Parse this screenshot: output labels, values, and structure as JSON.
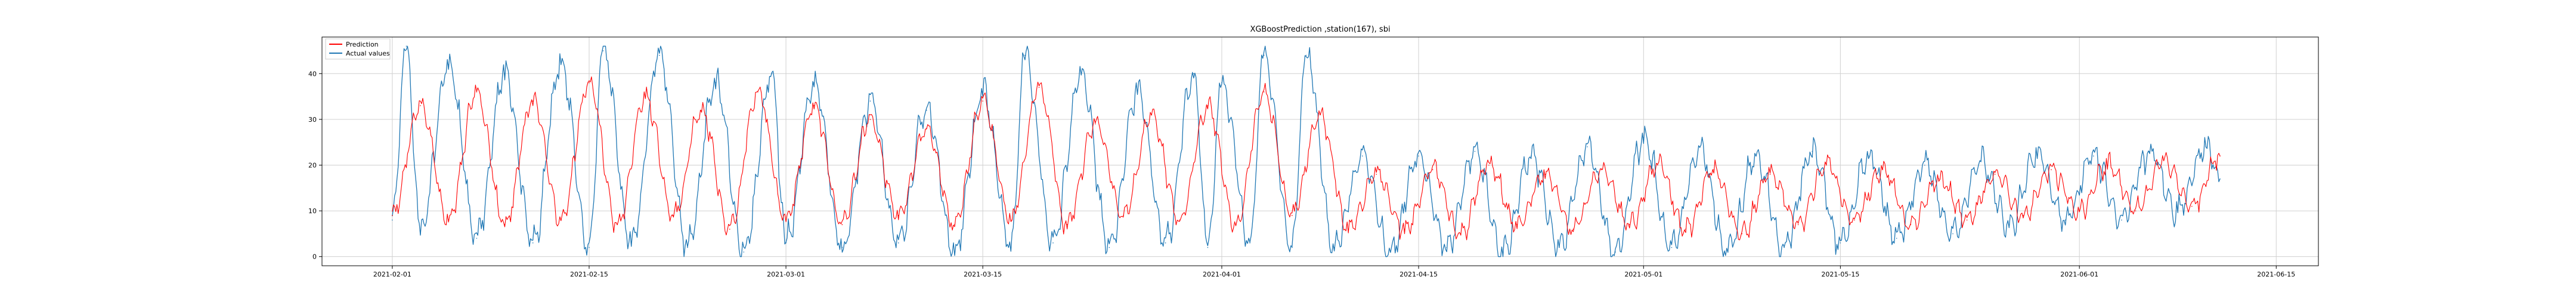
{
  "chart_data": {
    "type": "line",
    "title": "XGBoostPrediction ,station(167), sbi",
    "xlabel": "",
    "ylabel": "",
    "xlim": [
      "2021-01-27",
      "2021-06-18"
    ],
    "ylim": [
      -2,
      48
    ],
    "x_ticks": [
      "2021-02-01",
      "2021-02-15",
      "2021-03-01",
      "2021-03-15",
      "2021-04-01",
      "2021-04-15",
      "2021-05-01",
      "2021-05-15",
      "2021-06-01",
      "2021-06-15"
    ],
    "y_ticks": [
      "0",
      "10",
      "20",
      "30",
      "40"
    ],
    "grid": true,
    "legend_position": "top-left",
    "data_start": "2021-02-01",
    "data_end": "2021-06-11",
    "series": [
      {
        "name": "Prediction",
        "color": "#ff0000",
        "points": [
          [
            "2021-02-01",
            9
          ],
          [
            "2021-02-03",
            33
          ],
          [
            "2021-02-05",
            8
          ],
          [
            "2021-02-07",
            36
          ],
          [
            "2021-02-09",
            7
          ],
          [
            "2021-02-11",
            34
          ],
          [
            "2021-02-13",
            8
          ],
          [
            "2021-02-15",
            38
          ],
          [
            "2021-02-17",
            7
          ],
          [
            "2021-02-19",
            35
          ],
          [
            "2021-02-21",
            9
          ],
          [
            "2021-02-23",
            32
          ],
          [
            "2021-02-25",
            6
          ],
          [
            "2021-02-27",
            36
          ],
          [
            "2021-03-01",
            8
          ],
          [
            "2021-03-03",
            33
          ],
          [
            "2021-03-05",
            7
          ],
          [
            "2021-03-07",
            30
          ],
          [
            "2021-03-09",
            9
          ],
          [
            "2021-03-11",
            28
          ],
          [
            "2021-03-13",
            7
          ],
          [
            "2021-03-15",
            34
          ],
          [
            "2021-03-17",
            8
          ],
          [
            "2021-03-19",
            37
          ],
          [
            "2021-03-21",
            7
          ],
          [
            "2021-03-23",
            29
          ],
          [
            "2021-03-25",
            9
          ],
          [
            "2021-03-27",
            31
          ],
          [
            "2021-03-29",
            8
          ],
          [
            "2021-03-31",
            33
          ],
          [
            "2021-04-02",
            7
          ],
          [
            "2021-04-04",
            36
          ],
          [
            "2021-04-06",
            9
          ],
          [
            "2021-04-08",
            31
          ],
          [
            "2021-04-10",
            6
          ],
          [
            "2021-04-12",
            18
          ],
          [
            "2021-04-14",
            6
          ],
          [
            "2021-04-16",
            19
          ],
          [
            "2021-04-18",
            5
          ],
          [
            "2021-04-20",
            20
          ],
          [
            "2021-04-22",
            7
          ],
          [
            "2021-04-24",
            18
          ],
          [
            "2021-04-26",
            6
          ],
          [
            "2021-04-28",
            19
          ],
          [
            "2021-04-30",
            7
          ],
          [
            "2021-05-02",
            20
          ],
          [
            "2021-05-04",
            6
          ],
          [
            "2021-05-06",
            19
          ],
          [
            "2021-05-08",
            5
          ],
          [
            "2021-05-10",
            18
          ],
          [
            "2021-05-12",
            7
          ],
          [
            "2021-05-14",
            20
          ],
          [
            "2021-05-16",
            8
          ],
          [
            "2021-05-18",
            19
          ],
          [
            "2021-05-20",
            7
          ],
          [
            "2021-05-22",
            17
          ],
          [
            "2021-05-24",
            8
          ],
          [
            "2021-05-26",
            18
          ],
          [
            "2021-05-28",
            9
          ],
          [
            "2021-05-30",
            19
          ],
          [
            "2021-06-01",
            10
          ],
          [
            "2021-06-03",
            20
          ],
          [
            "2021-06-05",
            10
          ],
          [
            "2021-06-07",
            21
          ],
          [
            "2021-06-09",
            11
          ],
          [
            "2021-06-11",
            22
          ]
        ]
      },
      {
        "name": "Actual values",
        "color": "#1f77b4",
        "points": [
          [
            "2021-02-01",
            8
          ],
          [
            "2021-02-02",
            46
          ],
          [
            "2021-02-03",
            5
          ],
          [
            "2021-02-05",
            42
          ],
          [
            "2021-02-07",
            4
          ],
          [
            "2021-02-09",
            40
          ],
          [
            "2021-02-11",
            3
          ],
          [
            "2021-02-13",
            42
          ],
          [
            "2021-02-15",
            2
          ],
          [
            "2021-02-16",
            45
          ],
          [
            "2021-02-18",
            3
          ],
          [
            "2021-02-20",
            44
          ],
          [
            "2021-02-22",
            2
          ],
          [
            "2021-02-24",
            38
          ],
          [
            "2021-02-26",
            1
          ],
          [
            "2021-02-28",
            40
          ],
          [
            "2021-03-01",
            3
          ],
          [
            "2021-03-03",
            38
          ],
          [
            "2021-03-05",
            2
          ],
          [
            "2021-03-07",
            34
          ],
          [
            "2021-03-09",
            3
          ],
          [
            "2021-03-11",
            32
          ],
          [
            "2021-03-13",
            1
          ],
          [
            "2021-03-15",
            36
          ],
          [
            "2021-03-17",
            2
          ],
          [
            "2021-03-18",
            44
          ],
          [
            "2021-03-20",
            3
          ],
          [
            "2021-03-22",
            40
          ],
          [
            "2021-03-24",
            2
          ],
          [
            "2021-03-26",
            36
          ],
          [
            "2021-03-28",
            3
          ],
          [
            "2021-03-30",
            40
          ],
          [
            "2021-03-31",
            2
          ],
          [
            "2021-04-01",
            38
          ],
          [
            "2021-04-03",
            3
          ],
          [
            "2021-04-04",
            44
          ],
          [
            "2021-04-06",
            2
          ],
          [
            "2021-04-07",
            44
          ],
          [
            "2021-04-09",
            2
          ],
          [
            "2021-04-11",
            22
          ],
          [
            "2021-04-13",
            1
          ],
          [
            "2021-04-15",
            22
          ],
          [
            "2021-04-17",
            2
          ],
          [
            "2021-04-19",
            23
          ],
          [
            "2021-04-21",
            1
          ],
          [
            "2021-04-23",
            22
          ],
          [
            "2021-04-25",
            2
          ],
          [
            "2021-04-27",
            24
          ],
          [
            "2021-04-29",
            1
          ],
          [
            "2021-05-01",
            26
          ],
          [
            "2021-05-03",
            2
          ],
          [
            "2021-05-05",
            24
          ],
          [
            "2021-05-07",
            1
          ],
          [
            "2021-05-09",
            22
          ],
          [
            "2021-05-11",
            2
          ],
          [
            "2021-05-13",
            23
          ],
          [
            "2021-05-15",
            3
          ],
          [
            "2021-05-17",
            22
          ],
          [
            "2021-05-19",
            4
          ],
          [
            "2021-05-21",
            20
          ],
          [
            "2021-05-23",
            5
          ],
          [
            "2021-05-25",
            21
          ],
          [
            "2021-05-27",
            7
          ],
          [
            "2021-05-29",
            22
          ],
          [
            "2021-05-31",
            8
          ],
          [
            "2021-06-02",
            22
          ],
          [
            "2021-06-04",
            8
          ],
          [
            "2021-06-06",
            23
          ],
          [
            "2021-06-08",
            10
          ],
          [
            "2021-06-10",
            24
          ],
          [
            "2021-06-11",
            17
          ]
        ]
      }
    ]
  }
}
